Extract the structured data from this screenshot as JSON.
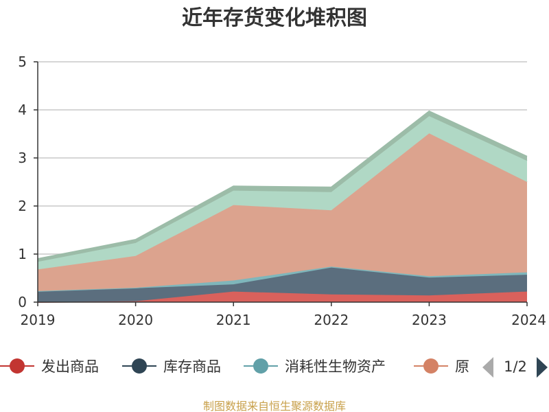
{
  "chart_data": {
    "type": "area",
    "title": "近年存货变化堆积图",
    "ylabel": "",
    "xlabel": "",
    "ylim": [
      0,
      5
    ],
    "yticks": [
      0,
      1,
      2,
      3,
      4,
      5
    ],
    "categories": [
      "2019",
      "2020",
      "2021",
      "2022",
      "2023",
      "2024"
    ],
    "stacked": true,
    "grid": true,
    "legend_position": "bottom",
    "series": [
      {
        "name": "发出商品",
        "color": "#d9615c",
        "values": [
          0.0,
          0.02,
          0.22,
          0.16,
          0.14,
          0.22
        ]
      },
      {
        "name": "库存商品",
        "color": "#5b6e7e",
        "values": [
          0.23,
          0.27,
          0.15,
          0.56,
          0.37,
          0.35
        ]
      },
      {
        "name": "消耗性生物资产",
        "color": "#7fb6bb",
        "values": [
          0.0,
          0.01,
          0.08,
          0.02,
          0.03,
          0.05
        ]
      },
      {
        "name": "原材料",
        "color": "#dca38e",
        "values": [
          0.45,
          0.66,
          1.57,
          1.17,
          2.97,
          1.88
        ]
      },
      {
        "name": "",
        "color": "#b0d8c5",
        "values": [
          0.16,
          0.27,
          0.3,
          0.38,
          0.36,
          0.44
        ]
      },
      {
        "name": "",
        "color": "#9cbca8",
        "values": [
          0.06,
          0.07,
          0.09,
          0.1,
          0.1,
          0.09
        ]
      }
    ]
  },
  "legend": {
    "items": [
      {
        "label": "发出商品",
        "color": "#c23531"
      },
      {
        "label": "库存商品",
        "color": "#2f4554"
      },
      {
        "label": "消耗性生物资产",
        "color": "#61a0a8"
      },
      {
        "label": "原",
        "color": "#d48265"
      }
    ],
    "page_indicator": "1/2",
    "prev_icon": "triangle-left-icon",
    "next_icon": "triangle-right-icon"
  },
  "footer": {
    "source": "制图数据来自恒生聚源数据库"
  }
}
